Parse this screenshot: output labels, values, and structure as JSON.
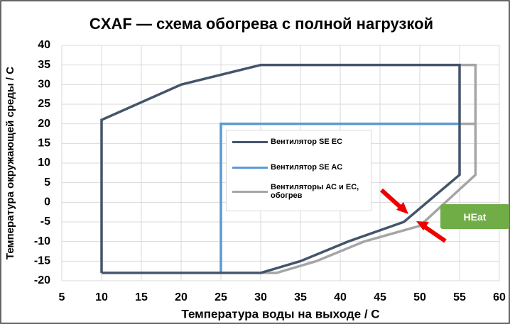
{
  "chart_data": {
    "type": "line",
    "title": "CXAF — схема обогрева с полной нагрузкой",
    "x_label": "Температура воды на выходе / С",
    "y_label": "Температура окружающей среды / С",
    "annotation": "HEat",
    "xlim": [
      5,
      60
    ],
    "xticks": [
      5,
      10,
      15,
      20,
      25,
      30,
      35,
      40,
      45,
      50,
      55,
      60
    ],
    "ylim": [
      -20,
      40
    ],
    "yticks": [
      -20,
      -15,
      -10,
      -5,
      0,
      5,
      10,
      15,
      20,
      25,
      30,
      35,
      40
    ],
    "grid": true,
    "series": [
      {
        "name": "Вентилятор SE EC",
        "color": "#44546a",
        "x": [
          10,
          10,
          20,
          30,
          55,
          55,
          48,
          41,
          35,
          30,
          10
        ],
        "values": [
          -18,
          21,
          30,
          35,
          35,
          7,
          -5,
          -10,
          -15,
          -18,
          -18
        ]
      },
      {
        "name": "Вентилятор SE AC",
        "color": "#5b9bd5",
        "x": [
          25,
          25,
          55
        ],
        "values": [
          -18,
          20,
          20
        ]
      },
      {
        "name": "Вентиляторы АС и ЕС, обогрев",
        "color": "#a5a5a5",
        "x": [
          30,
          32,
          37,
          43,
          50,
          57,
          57,
          55,
          null,
          55,
          57
        ],
        "values": [
          -18,
          -18,
          -15,
          -10,
          -6,
          7,
          35,
          35,
          null,
          20,
          20
        ]
      }
    ]
  }
}
